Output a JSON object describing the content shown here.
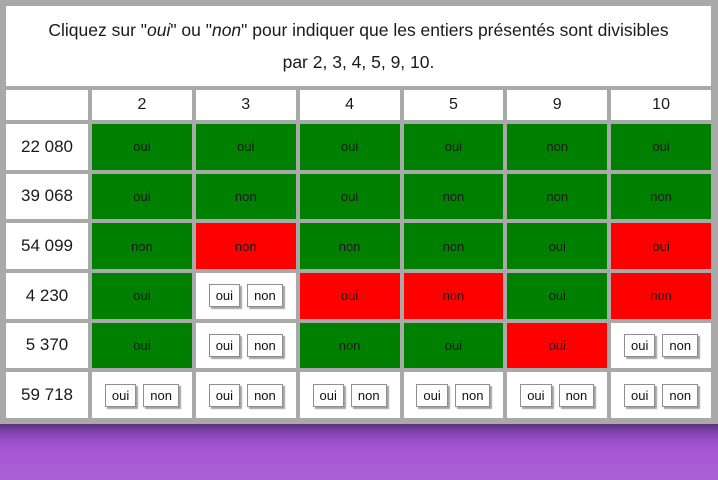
{
  "title": {
    "line1_segments": [
      {
        "text": "Cliquez sur \"",
        "italic": false
      },
      {
        "text": "oui",
        "italic": true
      },
      {
        "text": "\" ou \"",
        "italic": false
      },
      {
        "text": "non",
        "italic": true
      },
      {
        "text": "\" pour indiquer que les entiers présentés sont divisibles",
        "italic": false
      }
    ],
    "line2": "par 2, 3, 4, 5, 9, 10."
  },
  "columns": [
    "2",
    "3",
    "4",
    "5",
    "9",
    "10"
  ],
  "buttons": {
    "yes": "oui",
    "no": "non"
  },
  "colors": {
    "correct": "#008000",
    "incorrect": "#ff0000",
    "footer_purple": "#a95cd8",
    "cell_white": "#ffffff",
    "page_gray": "#a9a9a9"
  },
  "rows": [
    {
      "label": "22 080",
      "cells": [
        {
          "answer": "oui",
          "correct": true
        },
        {
          "answer": "oui",
          "correct": true
        },
        {
          "answer": "oui",
          "correct": true
        },
        {
          "answer": "oui",
          "correct": true
        },
        {
          "answer": "non",
          "correct": true
        },
        {
          "answer": "oui",
          "correct": true
        }
      ]
    },
    {
      "label": "39 068",
      "cells": [
        {
          "answer": "oui",
          "correct": true
        },
        {
          "answer": "non",
          "correct": true
        },
        {
          "answer": "oui",
          "correct": true
        },
        {
          "answer": "non",
          "correct": true
        },
        {
          "answer": "non",
          "correct": true
        },
        {
          "answer": "non",
          "correct": true
        }
      ]
    },
    {
      "label": "54 099",
      "cells": [
        {
          "answer": "non",
          "correct": true
        },
        {
          "answer": "non",
          "correct": false
        },
        {
          "answer": "non",
          "correct": true
        },
        {
          "answer": "non",
          "correct": true
        },
        {
          "answer": "oui",
          "correct": true
        },
        {
          "answer": "oui",
          "correct": false
        }
      ]
    },
    {
      "label": "4 230",
      "cells": [
        {
          "answer": "oui",
          "correct": true
        },
        {
          "open": true
        },
        {
          "answer": "oui",
          "correct": false
        },
        {
          "answer": "non",
          "correct": false
        },
        {
          "answer": "oui",
          "correct": true
        },
        {
          "answer": "non",
          "correct": false
        }
      ]
    },
    {
      "label": "5 370",
      "cells": [
        {
          "answer": "oui",
          "correct": true
        },
        {
          "open": true
        },
        {
          "answer": "non",
          "correct": true
        },
        {
          "answer": "oui",
          "correct": true
        },
        {
          "answer": "oui",
          "correct": false
        },
        {
          "open": true
        }
      ]
    },
    {
      "label": "59 718",
      "cells": [
        {
          "open": true
        },
        {
          "open": true
        },
        {
          "open": true
        },
        {
          "open": true
        },
        {
          "open": true
        },
        {
          "open": true
        }
      ]
    }
  ]
}
